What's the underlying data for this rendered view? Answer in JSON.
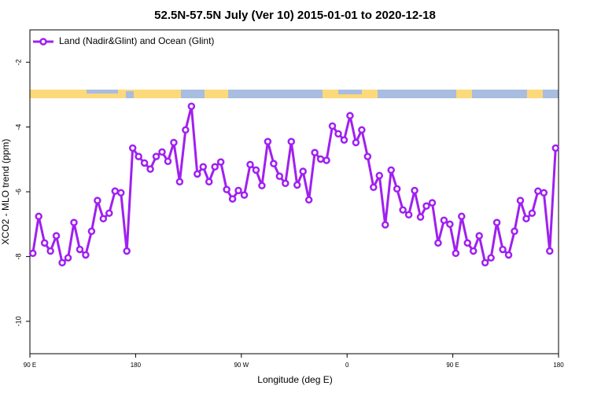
{
  "chart_data": {
    "type": "line",
    "title": "52.5N-57.5N July (Ver 10)   2015-01-01 to 2020-12-18",
    "x_label": "Longitude (deg E)",
    "y_label": "XCO2 - MLO trend (ppm)",
    "xlim": [
      90,
      540
    ],
    "xticks": [
      {
        "value": 90,
        "label": "90 E"
      },
      {
        "value": 180,
        "label": "180"
      },
      {
        "value": 270,
        "label": "90 W"
      },
      {
        "value": 360,
        "label": "0"
      },
      {
        "value": 450,
        "label": "90 E"
      },
      {
        "value": 540,
        "label": "180"
      }
    ],
    "ylim": [
      -11,
      -1
    ],
    "yticks": [
      -10,
      -8,
      -6,
      -4,
      -2
    ],
    "legend": "top-left",
    "x": [
      92.5,
      97.5,
      102.5,
      107.5,
      112.5,
      117.5,
      122.5,
      127.5,
      132.5,
      137.5,
      142.5,
      147.5,
      152.5,
      157.5,
      162.5,
      167.5,
      172.5,
      177.5,
      182.5,
      187.5,
      192.5,
      197.5,
      202.5,
      207.5,
      212.5,
      217.5,
      222.5,
      227.5,
      232.5,
      237.5,
      242.5,
      247.5,
      252.5,
      257.5,
      262.5,
      267.5,
      272.5,
      277.5,
      282.5,
      287.5,
      292.5,
      297.5,
      302.5,
      307.5,
      312.5,
      317.5,
      322.5,
      327.5,
      332.5,
      337.5,
      342.5,
      347.5,
      352.5,
      357.5,
      362.5,
      367.5,
      372.5,
      377.5,
      382.5,
      387.5,
      392.5,
      397.5,
      402.5,
      407.5,
      412.5,
      417.5,
      422.5,
      427.5,
      432.5,
      437.5,
      442.5,
      447.5,
      452.5,
      457.5,
      462.5,
      467.5,
      472.5,
      477.5,
      482.5,
      487.5,
      492.5,
      497.5,
      502.5,
      507.5,
      512.5,
      517.5,
      522.5,
      527.5,
      532.5,
      537.5
    ],
    "series": [
      {
        "name": "Land (Nadir&Glint) and Ocean (Glint)",
        "color": "#a020f0",
        "values": [
          -7.9,
          -6.76,
          -7.58,
          -7.83,
          -7.36,
          -8.19,
          -8.04,
          -6.95,
          -7.78,
          -7.95,
          -7.22,
          -6.27,
          -6.83,
          -6.66,
          -5.98,
          -6.03,
          -7.83,
          -4.65,
          -4.91,
          -5.11,
          -5.3,
          -4.91,
          -4.77,
          -5.06,
          -4.48,
          -5.69,
          -4.09,
          -3.36,
          -5.45,
          -5.23,
          -5.69,
          -5.23,
          -5.08,
          -5.93,
          -6.22,
          -5.96,
          -6.1,
          -5.16,
          -5.33,
          -5.81,
          -4.45,
          -5.13,
          -5.52,
          -5.74,
          -4.45,
          -5.79,
          -5.37,
          -6.25,
          -4.79,
          -4.99,
          -5.03,
          -3.97,
          -4.21,
          -4.4,
          -3.65,
          -4.48,
          -4.09,
          -4.91,
          -5.86,
          -5.5,
          -7.02,
          -5.33,
          -5.91,
          -6.56,
          -6.71,
          -5.96,
          -6.78,
          -6.44,
          -6.34,
          -7.58,
          -6.88,
          -7.0,
          -7.9,
          -6.76,
          -7.58,
          -7.83,
          -7.36,
          -8.19,
          -8.04,
          -6.95,
          -7.78,
          -7.95,
          -7.22,
          -6.27,
          -6.83,
          -6.66,
          -5.98,
          -6.03,
          -7.83,
          -4.65
        ]
      }
    ]
  }
}
